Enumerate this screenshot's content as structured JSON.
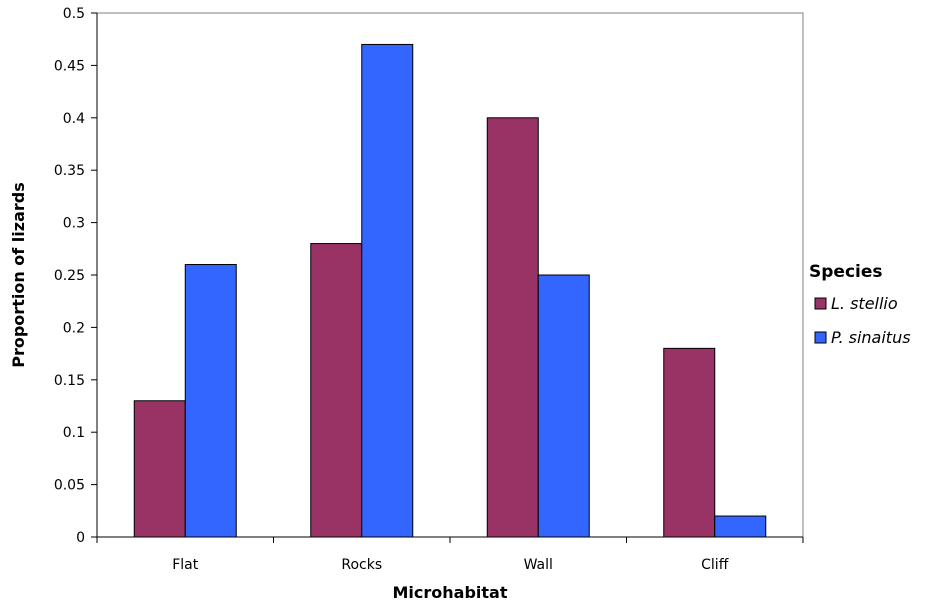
{
  "chart_data": {
    "type": "bar",
    "categories": [
      "Flat",
      "Rocks",
      "Wall",
      "Cliff"
    ],
    "series": [
      {
        "name": "L. stellio",
        "values": [
          0.13,
          0.28,
          0.4,
          0.18
        ],
        "color": "#993366"
      },
      {
        "name": "P. sinaitus",
        "values": [
          0.26,
          0.47,
          0.25,
          0.02
        ],
        "color": "#3366FF"
      }
    ],
    "xlabel": "Microhabitat",
    "ylabel": "Proportion of lizards",
    "ylim": [
      0,
      0.5
    ],
    "yticks": [
      "0",
      "0.05",
      "0.1",
      "0.15",
      "0.2",
      "0.25",
      "0.3",
      "0.35",
      "0.4",
      "0.45",
      "0.5"
    ],
    "legend": {
      "title": "Species",
      "position": "right"
    },
    "grid": false
  }
}
